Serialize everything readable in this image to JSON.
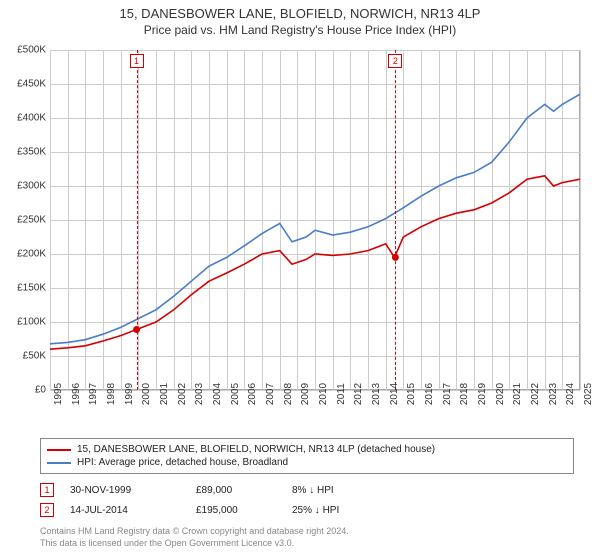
{
  "title": "15, DANESBOWER LANE, BLOFIELD, NORWICH, NR13 4LP",
  "subtitle": "Price paid vs. HM Land Registry's House Price Index (HPI)",
  "chart": {
    "type": "line",
    "background_color": "#ffffff",
    "grid_color": "#cccccc",
    "border_color": "#aaaaaa",
    "label_fontsize": 10,
    "title_fontsize": 13,
    "line_width": 1.6,
    "x": {
      "min": 1995,
      "max": 2025,
      "ticks": [
        1995,
        1996,
        1997,
        1998,
        1999,
        2000,
        2001,
        2002,
        2003,
        2004,
        2005,
        2006,
        2007,
        2008,
        2009,
        2010,
        2011,
        2012,
        2013,
        2014,
        2015,
        2016,
        2017,
        2018,
        2019,
        2020,
        2021,
        2022,
        2023,
        2024,
        2025
      ]
    },
    "y": {
      "min": 0,
      "max": 500000,
      "tick_step": 50000,
      "tick_labels": [
        "£0",
        "£50K",
        "£100K",
        "£150K",
        "£200K",
        "£250K",
        "£300K",
        "£350K",
        "£400K",
        "£450K",
        "£500K"
      ]
    },
    "series": [
      {
        "name": "15, DANESBOWER LANE, BLOFIELD, NORWICH, NR13 4LP (detached house)",
        "color": "#d40000",
        "points": [
          [
            1995,
            60000
          ],
          [
            1996,
            62000
          ],
          [
            1997,
            65000
          ],
          [
            1998,
            72000
          ],
          [
            1999,
            80000
          ],
          [
            1999.9,
            89000
          ],
          [
            2001,
            100000
          ],
          [
            2002,
            118000
          ],
          [
            2003,
            140000
          ],
          [
            2004,
            160000
          ],
          [
            2005,
            172000
          ],
          [
            2006,
            185000
          ],
          [
            2007,
            200000
          ],
          [
            2008,
            205000
          ],
          [
            2008.7,
            185000
          ],
          [
            2009.5,
            192000
          ],
          [
            2010,
            200000
          ],
          [
            2011,
            198000
          ],
          [
            2012,
            200000
          ],
          [
            2013,
            205000
          ],
          [
            2014,
            215000
          ],
          [
            2014.5,
            195000
          ],
          [
            2015,
            225000
          ],
          [
            2016,
            240000
          ],
          [
            2017,
            252000
          ],
          [
            2018,
            260000
          ],
          [
            2019,
            265000
          ],
          [
            2020,
            275000
          ],
          [
            2021,
            290000
          ],
          [
            2022,
            310000
          ],
          [
            2023,
            315000
          ],
          [
            2023.5,
            300000
          ],
          [
            2024,
            305000
          ],
          [
            2025,
            310000
          ]
        ]
      },
      {
        "name": "HPI: Average price, detached house, Broadland",
        "color": "#4a7dc9",
        "points": [
          [
            1995,
            68000
          ],
          [
            1996,
            70000
          ],
          [
            1997,
            74000
          ],
          [
            1998,
            82000
          ],
          [
            1999,
            92000
          ],
          [
            2000,
            105000
          ],
          [
            2001,
            118000
          ],
          [
            2002,
            138000
          ],
          [
            2003,
            160000
          ],
          [
            2004,
            182000
          ],
          [
            2005,
            195000
          ],
          [
            2006,
            212000
          ],
          [
            2007,
            230000
          ],
          [
            2008,
            245000
          ],
          [
            2008.7,
            218000
          ],
          [
            2009.5,
            225000
          ],
          [
            2010,
            235000
          ],
          [
            2011,
            228000
          ],
          [
            2012,
            232000
          ],
          [
            2013,
            240000
          ],
          [
            2014,
            252000
          ],
          [
            2015,
            268000
          ],
          [
            2016,
            285000
          ],
          [
            2017,
            300000
          ],
          [
            2018,
            312000
          ],
          [
            2019,
            320000
          ],
          [
            2020,
            335000
          ],
          [
            2021,
            365000
          ],
          [
            2022,
            400000
          ],
          [
            2023,
            420000
          ],
          [
            2023.5,
            410000
          ],
          [
            2024,
            420000
          ],
          [
            2025,
            435000
          ]
        ]
      }
    ],
    "sale_markers": [
      {
        "n": "1",
        "year": 1999.9,
        "price": 89000,
        "color": "#d40000"
      },
      {
        "n": "2",
        "year": 2014.55,
        "price": 195000,
        "color": "#d40000"
      }
    ]
  },
  "legend": {
    "series1": "15, DANESBOWER LANE, BLOFIELD, NORWICH, NR13 4LP (detached house)",
    "series2": "HPI: Average price, detached house, Broadland"
  },
  "sales": [
    {
      "n": "1",
      "date": "30-NOV-1999",
      "price": "£89,000",
      "delta": "8% ↓ HPI",
      "color": "#d40000"
    },
    {
      "n": "2",
      "date": "14-JUL-2014",
      "price": "£195,000",
      "delta": "25% ↓ HPI",
      "color": "#d40000"
    }
  ],
  "footer_line1": "Contains HM Land Registry data © Crown copyright and database right 2024.",
  "footer_line2": "This data is licensed under the Open Government Licence v3.0."
}
